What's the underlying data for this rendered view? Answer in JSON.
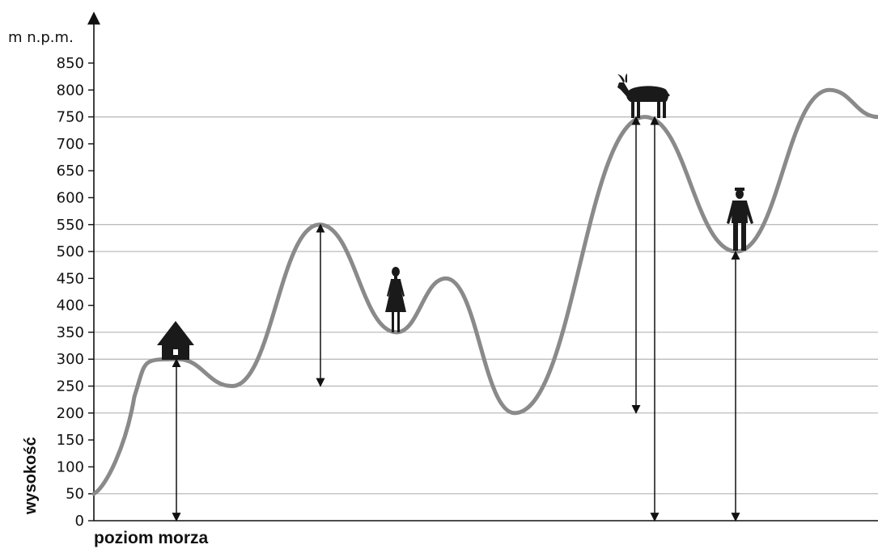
{
  "axis": {
    "unit_label": "m n.p.m.",
    "ylabel": "wysokość",
    "xlabel": "poziom morza",
    "ticks": [
      "0",
      "50",
      "100",
      "150",
      "200",
      "250",
      "300",
      "350",
      "400",
      "450",
      "500",
      "550",
      "600",
      "650",
      "700",
      "750",
      "800",
      "850"
    ],
    "ylim": [
      0,
      850
    ],
    "gridlines": [
      50,
      200,
      250,
      300,
      350,
      500,
      550,
      750
    ]
  },
  "colors": {
    "profile": "#8a8a8a",
    "arrow": "#111111",
    "grid": "#b5b5b5",
    "silhouette": "#1a1a1a"
  },
  "profile": {
    "elevations": [
      50,
      300,
      250,
      550,
      350,
      450,
      200,
      750,
      500,
      800,
      750
    ]
  },
  "figures": [
    {
      "id": "house",
      "icon": "house-icon",
      "elevation": 300
    },
    {
      "id": "woman",
      "icon": "woman-silhouette-icon",
      "elevation": 350
    },
    {
      "id": "goat",
      "icon": "mountain-goat-icon",
      "elevation": 750
    },
    {
      "id": "man",
      "icon": "man-silhouette-icon",
      "elevation": 500
    }
  ],
  "arrows": [
    {
      "from": 0,
      "to": 300
    },
    {
      "from": 250,
      "to": 550
    },
    {
      "from": 200,
      "to": 750
    },
    {
      "from": 0,
      "to": 750
    },
    {
      "from": 0,
      "to": 500
    }
  ]
}
